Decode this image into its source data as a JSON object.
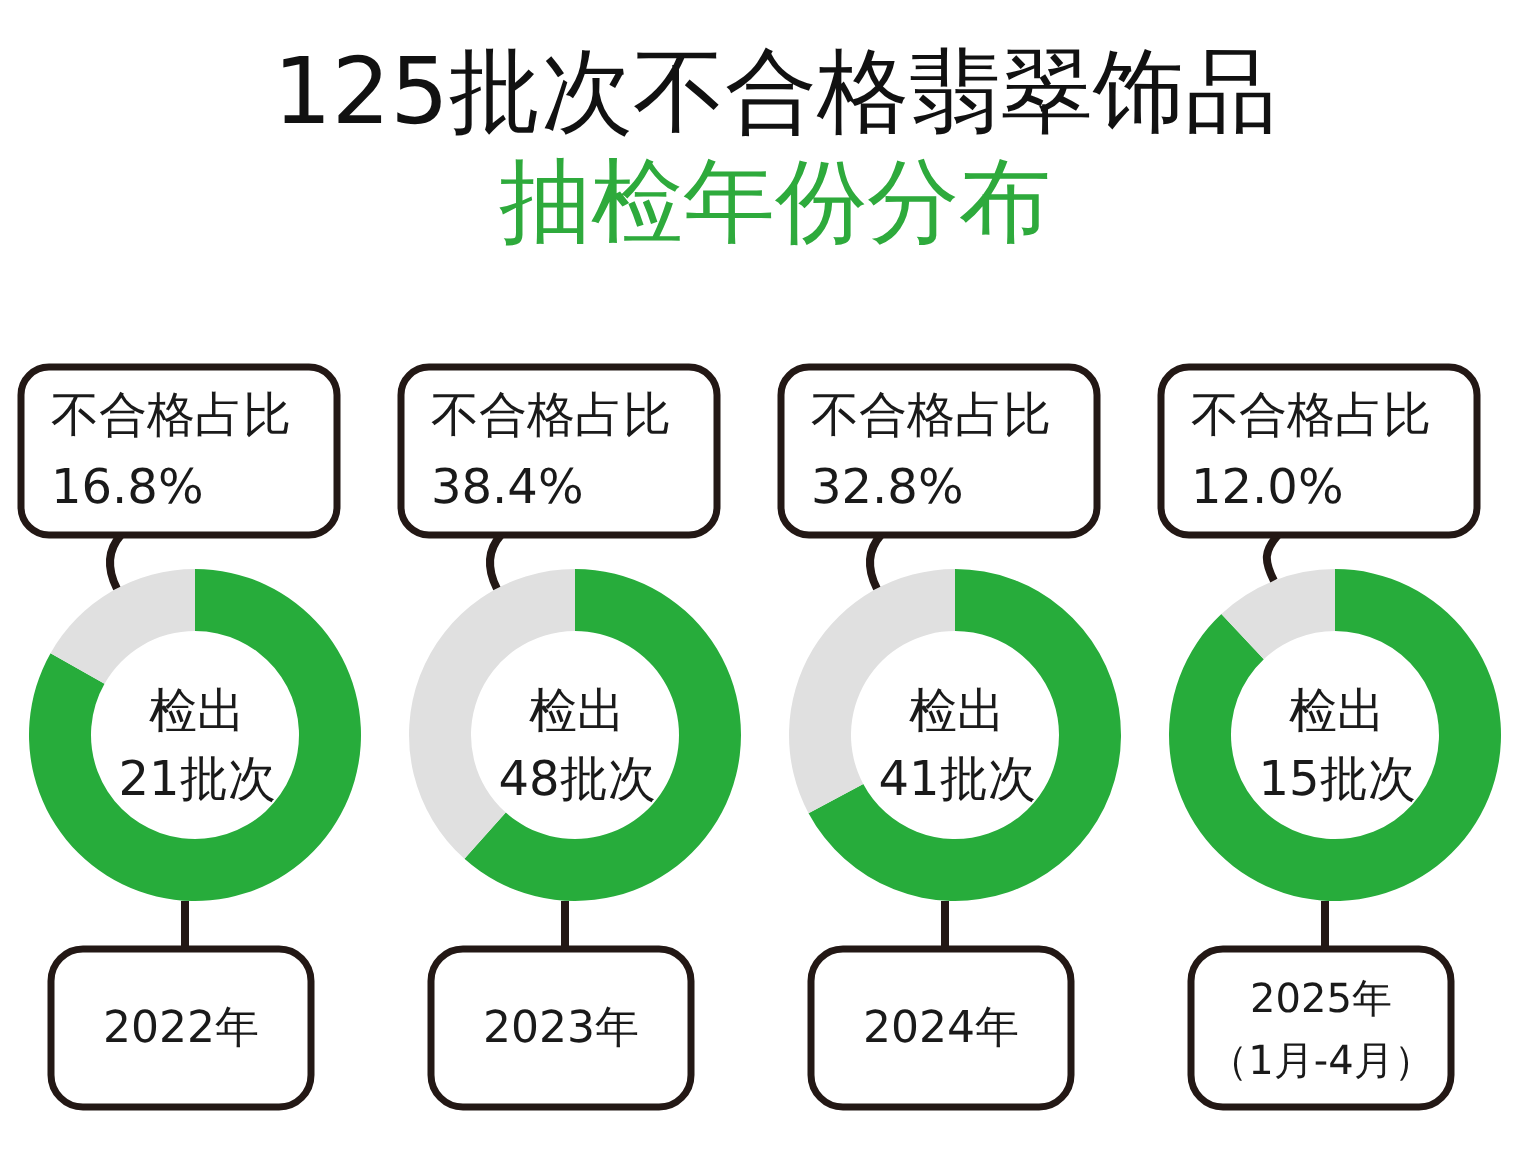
{
  "chart_data": [
    {
      "type": "other",
      "title": "125批次不合格翡翠饰品",
      "subtitle": "抽检年份分布"
    },
    {
      "type": "donut",
      "xlabel": "2022年",
      "categories": [
        null,
        null
      ],
      "values": [
        83.2,
        16.8
      ],
      "colors": [
        "#27ac3b",
        "#e0e0e0"
      ],
      "value_labels": [
        null,
        "不合格占比\n16.8%"
      ],
      "annotations": [
        "检出\n21批次"
      ]
    },
    {
      "type": "donut",
      "xlabel": "2023年",
      "categories": [
        null,
        null
      ],
      "values": [
        61.6,
        38.4
      ],
      "colors": [
        "#27ac3b",
        "#e0e0e0"
      ],
      "value_labels": [
        null,
        "不合格占比\n38.4%"
      ],
      "annotations": [
        "检出\n48批次"
      ]
    },
    {
      "type": "donut",
      "xlabel": "2024年",
      "categories": [
        null,
        null
      ],
      "values": [
        67.2,
        32.8
      ],
      "colors": [
        "#27ac3b",
        "#e0e0e0"
      ],
      "value_labels": [
        null,
        "不合格占比\n32.8%"
      ],
      "annotations": [
        "检出\n41批次"
      ]
    },
    {
      "type": "donut",
      "xlabel": "2025年（1月-4月）",
      "categories": [
        null,
        null
      ],
      "values": [
        88.0,
        12.0
      ],
      "colors": [
        "#27ac3b",
        "#e0e0e0"
      ],
      "value_labels": [
        null,
        "不合格占比\n12.0%"
      ],
      "annotations": [
        "检出\n15批次"
      ]
    }
  ]
}
